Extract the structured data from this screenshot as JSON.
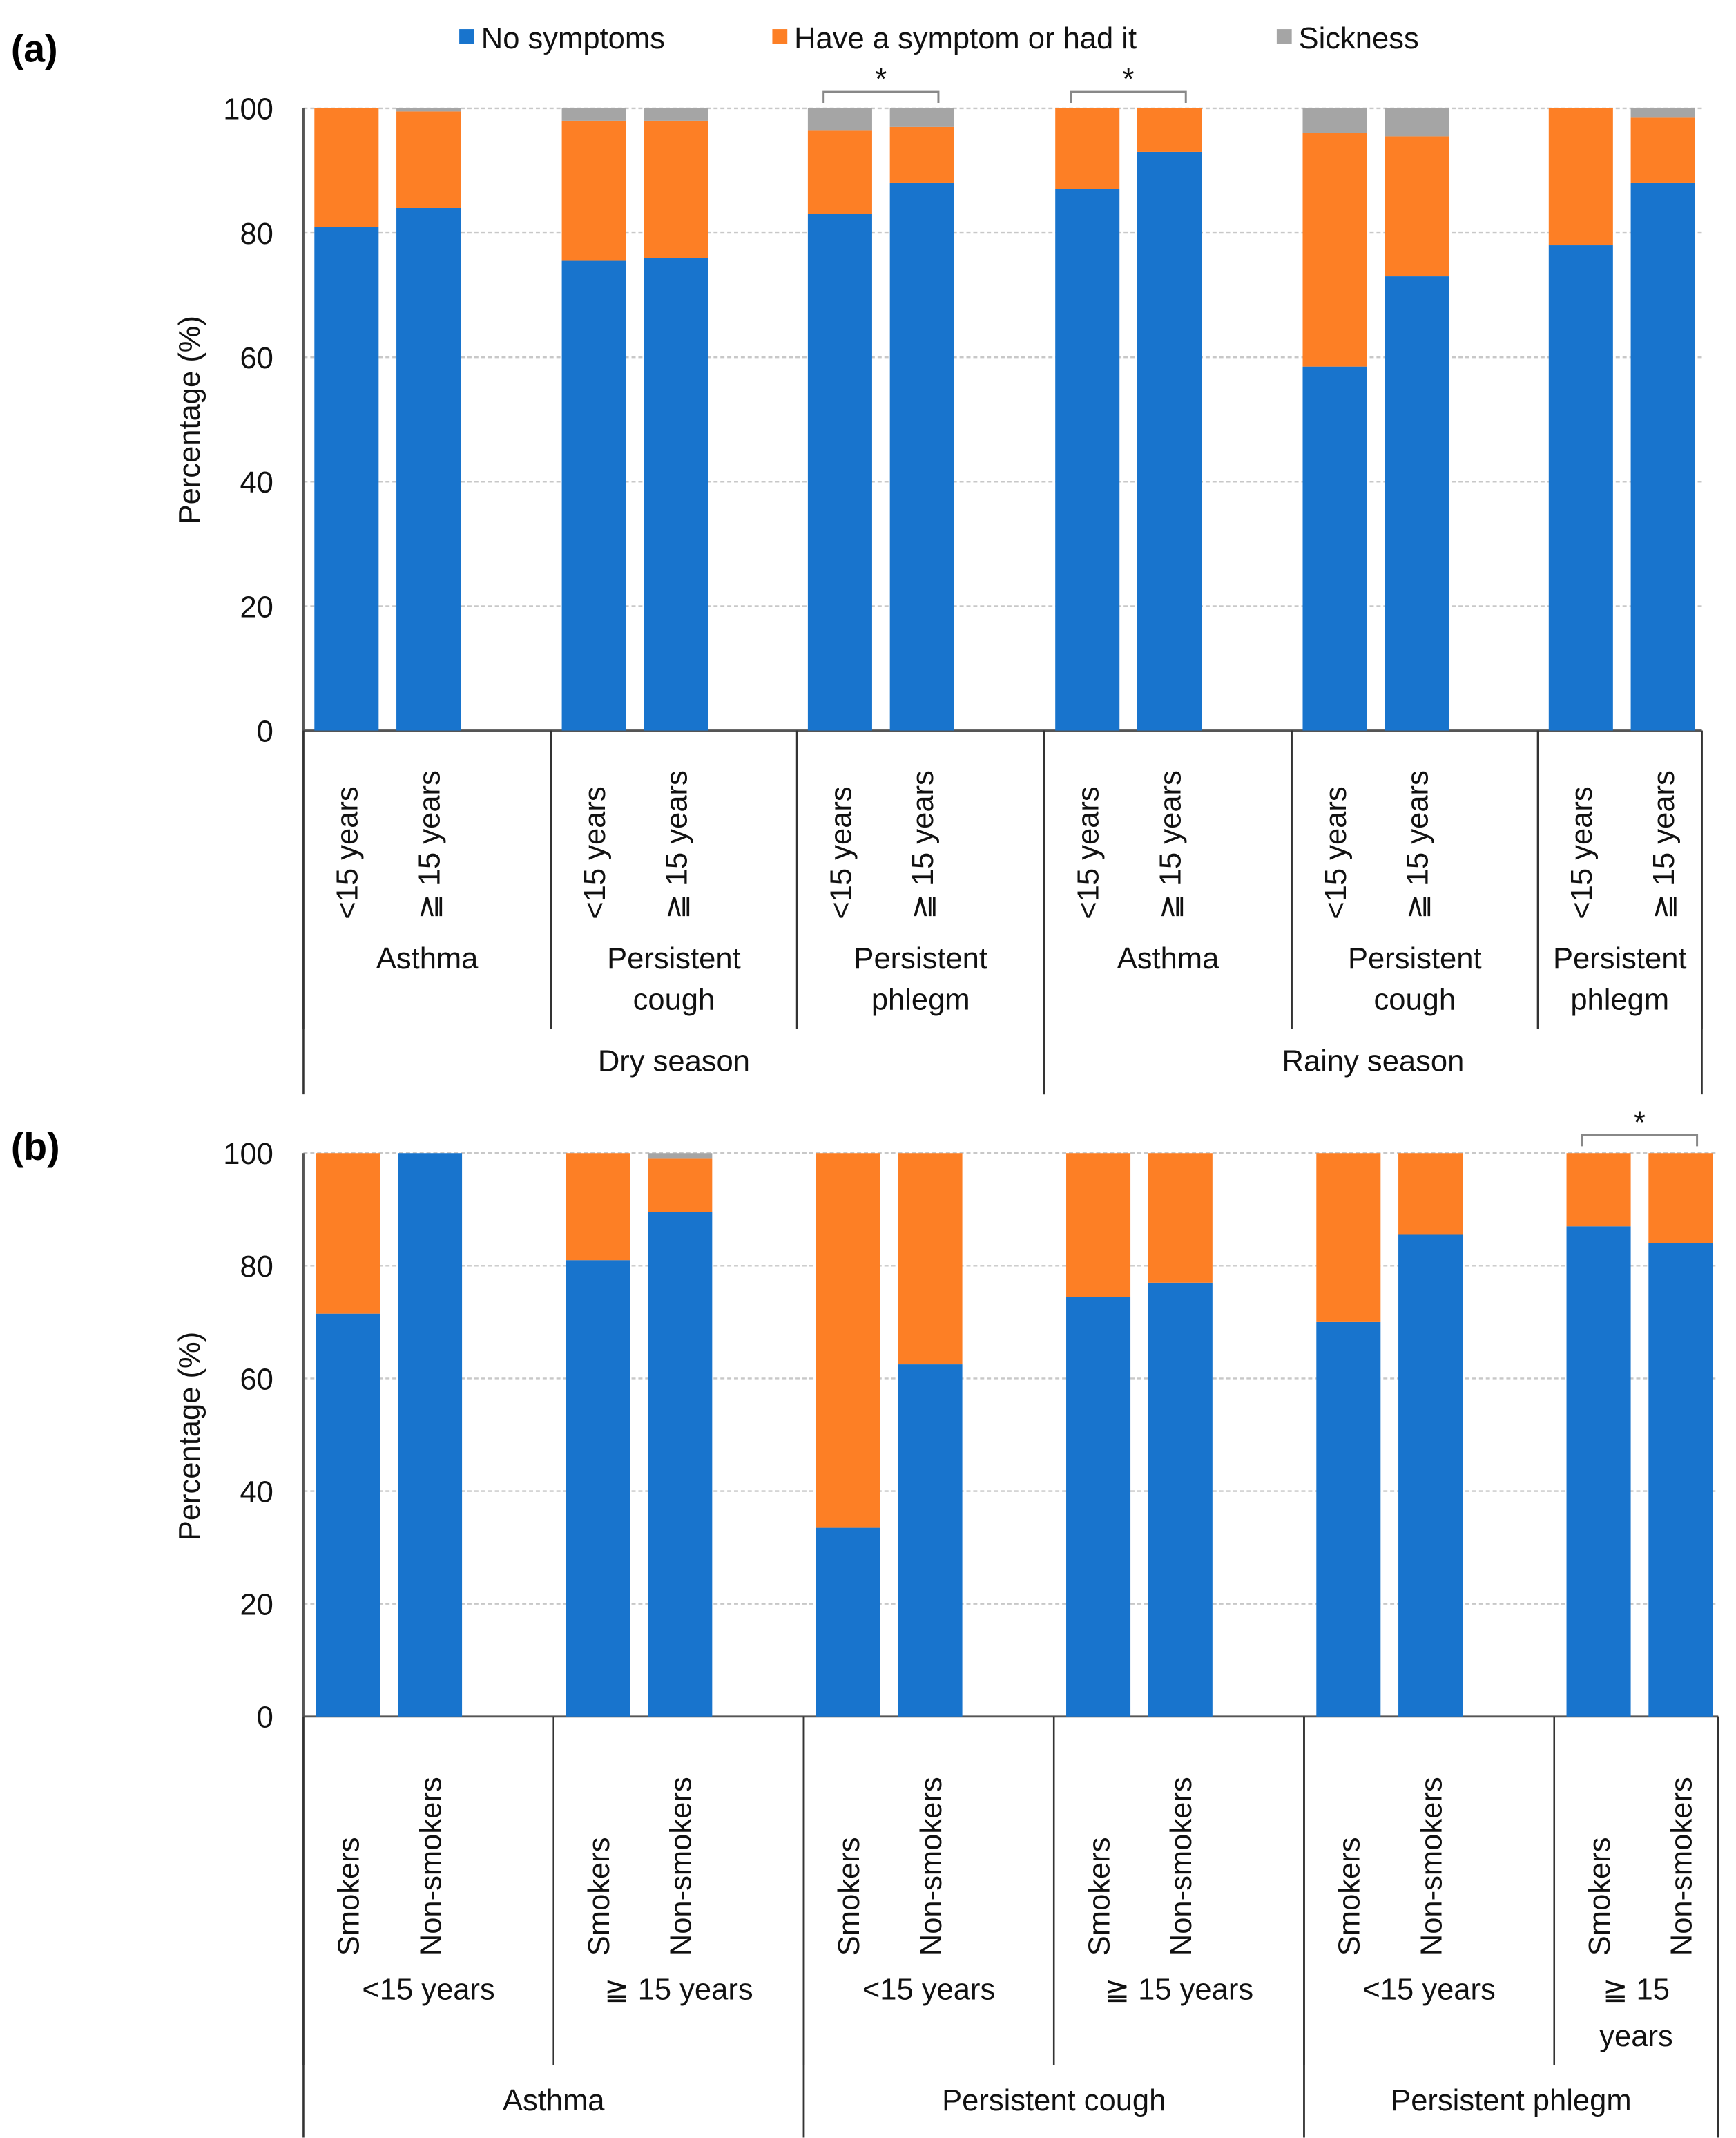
{
  "colors": {
    "no_symptoms": "#1874cd",
    "symptom": "#fd7f25",
    "sickness": "#a5a5a5"
  },
  "legend": [
    "No symptoms",
    "Have a symptom or had it",
    "Sickness"
  ],
  "chart_data": [
    {
      "type": "bar",
      "stacked": true,
      "panel_label": "(a)",
      "ylabel": "Percentage (%)",
      "ylim": [
        0,
        100
      ],
      "yticks": [
        "0",
        "20",
        "40",
        "60",
        "80",
        "100"
      ],
      "grid": true,
      "legend_placement": "top-center",
      "categories": [
        "<15 years",
        "≧ 15 years",
        "<15 years",
        "≧ 15 years",
        "<15 years",
        "≧ 15 years",
        "<15 years",
        "≧ 15 years",
        "<15 years",
        "≧ 15 years",
        "<15 years",
        "≧ 15 years"
      ],
      "level2": [
        [
          "Asthma"
        ],
        [
          "Persistent",
          "cough"
        ],
        [
          "Persistent",
          "phlegm"
        ],
        [
          "Asthma"
        ],
        [
          "Persistent",
          "cough"
        ],
        [
          "Persistent",
          "phlegm"
        ]
      ],
      "level3": [
        "Dry season",
        "Rainy season"
      ],
      "series": [
        {
          "name": "No symptoms",
          "values": [
            81,
            84,
            75.5,
            76,
            83,
            88,
            87,
            93,
            58.5,
            73,
            78,
            88
          ]
        },
        {
          "name": "Have a symptom or had it",
          "values": [
            19,
            15.5,
            22.5,
            22,
            13.5,
            9,
            13,
            7,
            37.5,
            22.5,
            22,
            10.5
          ]
        },
        {
          "name": "Sickness",
          "values": [
            0,
            0.5,
            2,
            2,
            3.5,
            3,
            0,
            0,
            4,
            4.5,
            0,
            1.5
          ]
        }
      ],
      "significance": [
        {
          "between": [
            4,
            5
          ],
          "label": "*"
        },
        {
          "between": [
            6,
            7
          ],
          "label": "*"
        }
      ]
    },
    {
      "type": "bar",
      "stacked": true,
      "panel_label": "(b)",
      "ylabel": "Percentage (%)",
      "ylim": [
        0,
        100
      ],
      "yticks": [
        "0",
        "20",
        "40",
        "60",
        "80",
        "100"
      ],
      "grid": true,
      "categories": [
        "Smokers",
        "Non-smokers",
        "Smokers",
        "Non-smokers",
        "Smokers",
        "Non-smokers",
        "Smokers",
        "Non-smokers",
        "Smokers",
        "Non-smokers",
        "Smokers",
        "Non-smokers"
      ],
      "level2": [
        [
          "<15 years"
        ],
        [
          "≧ 15 years"
        ],
        [
          "<15 years"
        ],
        [
          "≧ 15 years"
        ],
        [
          "<15 years"
        ],
        [
          "≧ 15",
          "years"
        ]
      ],
      "level3": [
        "Asthma",
        "Persistent cough",
        "Persistent phlegm"
      ],
      "series": [
        {
          "name": "No symptoms",
          "values": [
            71.5,
            100,
            81,
            89.5,
            33.5,
            62.5,
            74.5,
            77,
            70,
            85.5,
            87,
            84
          ]
        },
        {
          "name": "Have a symptom or had it",
          "values": [
            28.5,
            0,
            19,
            9.5,
            66.5,
            37.5,
            25.5,
            23,
            30,
            14.5,
            13,
            16
          ]
        },
        {
          "name": "Sickness",
          "values": [
            0,
            0,
            0,
            1,
            0,
            0,
            0,
            0,
            0,
            0,
            0,
            0
          ]
        }
      ],
      "significance": [
        {
          "between": [
            10,
            11
          ],
          "label": "*"
        }
      ]
    }
  ]
}
